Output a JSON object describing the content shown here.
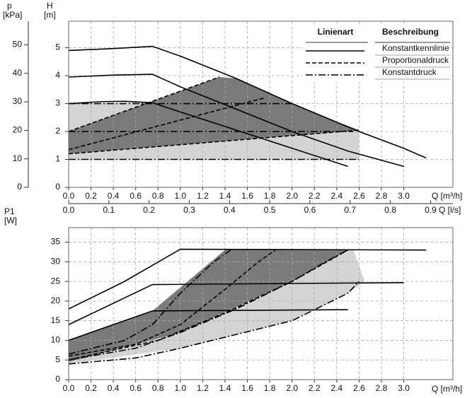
{
  "chart_data": [
    {
      "type": "line",
      "xlabel": "Q [m³/h]",
      "ylabel": "H",
      "ylabel_unit": "[m]",
      "y2label": "p",
      "y2label_unit": "[kPa]",
      "xlim": [
        0,
        3.44
      ],
      "ylim": [
        0,
        5.95
      ],
      "y2lim": [
        0,
        58.3
      ],
      "xticks": [
        {
          "value": 0,
          "label": "0.0"
        },
        0.2,
        0.4,
        0.6,
        0.8,
        {
          "value": 1,
          "label": "1.0"
        },
        1.2,
        1.4,
        1.6,
        1.8,
        {
          "value": 2,
          "label": "2.0"
        },
        2.2,
        2.4,
        2.6,
        2.8,
        {
          "value": 3,
          "label": "3.0"
        }
      ],
      "yticks": [
        0,
        1,
        2,
        3,
        4,
        5
      ],
      "y2ticks": [
        0,
        10,
        20,
        30,
        40,
        50
      ],
      "x2label": "Q [l/s]",
      "x2lim": [
        0,
        0.9556
      ],
      "x2ticks": [
        {
          "value": 0,
          "label": "0.0"
        },
        0.1,
        0.2,
        0.3,
        0.4,
        0.5,
        0.6,
        0.7,
        0.8,
        0.9
      ],
      "grid": true,
      "legend_headers": [
        "Linienart",
        "Beschreibung"
      ],
      "areas": [
        {
          "color": "#d4d4d4",
          "x": [
            0,
            0,
            2.0,
            2.3,
            2.6,
            2.6
          ],
          "values": [
            1.0,
            3.0,
            3.0,
            2.5,
            2.0,
            1.0
          ]
        },
        {
          "color": "#7a7a7a",
          "x": [
            0,
            1.35,
            1.5,
            2.0,
            2.3,
            2.6,
            0
          ],
          "values": [
            2.0,
            3.95,
            3.9,
            3.0,
            2.5,
            2.05,
            1.2
          ]
        }
      ],
      "series": [
        {
          "name": "Konstantkennlinie",
          "style": "solid",
          "color": "#000000",
          "lines": [
            {
              "x": [
                0,
                0.4,
                0.75,
                1.0,
                1.5,
                2.0,
                2.6,
                3.0,
                3.2
              ],
              "values": [
                4.9,
                4.97,
                5.05,
                4.7,
                3.9,
                3.0,
                2.0,
                1.4,
                1.05
              ]
            },
            {
              "x": [
                0,
                0.4,
                0.75,
                1.0,
                1.5,
                2.0,
                2.5,
                3.0
              ],
              "values": [
                3.95,
                4.02,
                4.05,
                3.6,
                2.8,
                2.0,
                1.3,
                0.75
              ]
            },
            {
              "x": [
                0,
                0.3,
                0.5,
                0.75,
                1.0,
                1.5,
                2.0,
                2.5
              ],
              "values": [
                3.0,
                3.07,
                3.08,
                3.03,
                2.7,
                2.05,
                1.4,
                0.75
              ]
            }
          ]
        },
        {
          "name": "Proportionaldruck",
          "style": "dashed",
          "color": "#000000",
          "lines": [
            {
              "x": [
                0,
                1.35
              ],
              "values": [
                2.0,
                3.95
              ]
            },
            {
              "x": [
                0,
                1.75
              ],
              "values": [
                1.35,
                3.2
              ]
            },
            {
              "x": [
                0,
                2.6
              ],
              "values": [
                1.2,
                2.05
              ]
            }
          ]
        },
        {
          "name": "Konstantdruck",
          "style": "dashdot",
          "color": "#000000",
          "lines": [
            {
              "x": [
                0,
                2.0
              ],
              "values": [
                3.0,
                3.0
              ]
            },
            {
              "x": [
                0,
                2.55
              ],
              "values": [
                2.0,
                2.0
              ]
            },
            {
              "x": [
                0,
                2.6
              ],
              "values": [
                1.0,
                1.0
              ]
            }
          ]
        }
      ]
    },
    {
      "type": "line",
      "xlabel": "Q [m³/h]",
      "ylabel": "P1",
      "ylabel_unit": "[W]",
      "xlim": [
        0,
        3.44
      ],
      "ylim": [
        0,
        38.7
      ],
      "xticks": [
        {
          "value": 0,
          "label": "0.0"
        },
        0.2,
        0.4,
        0.6,
        0.8,
        {
          "value": 1,
          "label": "1.0"
        },
        1.2,
        1.4,
        1.6,
        1.8,
        {
          "value": 2,
          "label": "2.0"
        },
        2.2,
        2.4,
        2.6,
        2.8,
        {
          "value": 3,
          "label": "3.0"
        }
      ],
      "yticks": [
        0,
        5,
        10,
        15,
        20,
        25,
        30,
        35
      ],
      "grid": true,
      "areas": [
        {
          "color": "#d4d4d4",
          "x": [
            0,
            0.75,
            1.45,
            2.55,
            2.65,
            2.5,
            2.0,
            1.0,
            0
          ],
          "values": [
            10,
            17.5,
            33,
            33,
            25,
            22,
            15,
            8,
            4
          ]
        },
        {
          "color": "#7a7a7a",
          "x": [
            0,
            0.75,
            1.4,
            2.5,
            2.0,
            1.0,
            0
          ],
          "values": [
            10,
            17.5,
            33,
            33,
            25,
            12,
            4.5
          ]
        }
      ],
      "series": [
        {
          "style": "solid",
          "color": "#000000",
          "lines": [
            {
              "x": [
                0,
                0.5,
                1.0,
                3.2
              ],
              "values": [
                18,
                25,
                33.2,
                33
              ]
            },
            {
              "x": [
                0,
                0.75,
                3.0
              ],
              "values": [
                14,
                24.2,
                24.7
              ]
            },
            {
              "x": [
                0,
                0.75,
                2.5
              ],
              "values": [
                10,
                17.5,
                17.8
              ]
            }
          ]
        },
        {
          "style": "dashed",
          "color": "#000000",
          "lines": [
            {
              "x": [
                0,
                0.6,
                1.0,
                1.4,
                1.7,
                1.85
              ],
              "values": [
                6,
                9,
                14,
                23,
                30,
                33
              ]
            },
            {
              "x": [
                0,
                0.8,
                1.4,
                2.0,
                2.5
              ],
              "values": [
                5,
                10,
                17,
                25,
                33
              ]
            }
          ]
        },
        {
          "style": "dashdot",
          "color": "#000000",
          "lines": [
            {
              "x": [
                0,
                0.5,
                0.75,
                1.0,
                1.3,
                1.45
              ],
              "values": [
                6.5,
                10,
                14,
                22,
                30,
                33
              ]
            },
            {
              "x": [
                0,
                0.6,
                1.0,
                1.5,
                2.0,
                2.3,
                2.5
              ],
              "values": [
                5,
                8,
                12,
                18,
                25,
                30,
                33
              ]
            },
            {
              "x": [
                0,
                0.6,
                1.0,
                1.5,
                2.0,
                2.5,
                2.6
              ],
              "values": [
                4,
                5.5,
                8,
                11.5,
                15,
                22,
                25
              ]
            }
          ]
        }
      ]
    }
  ]
}
